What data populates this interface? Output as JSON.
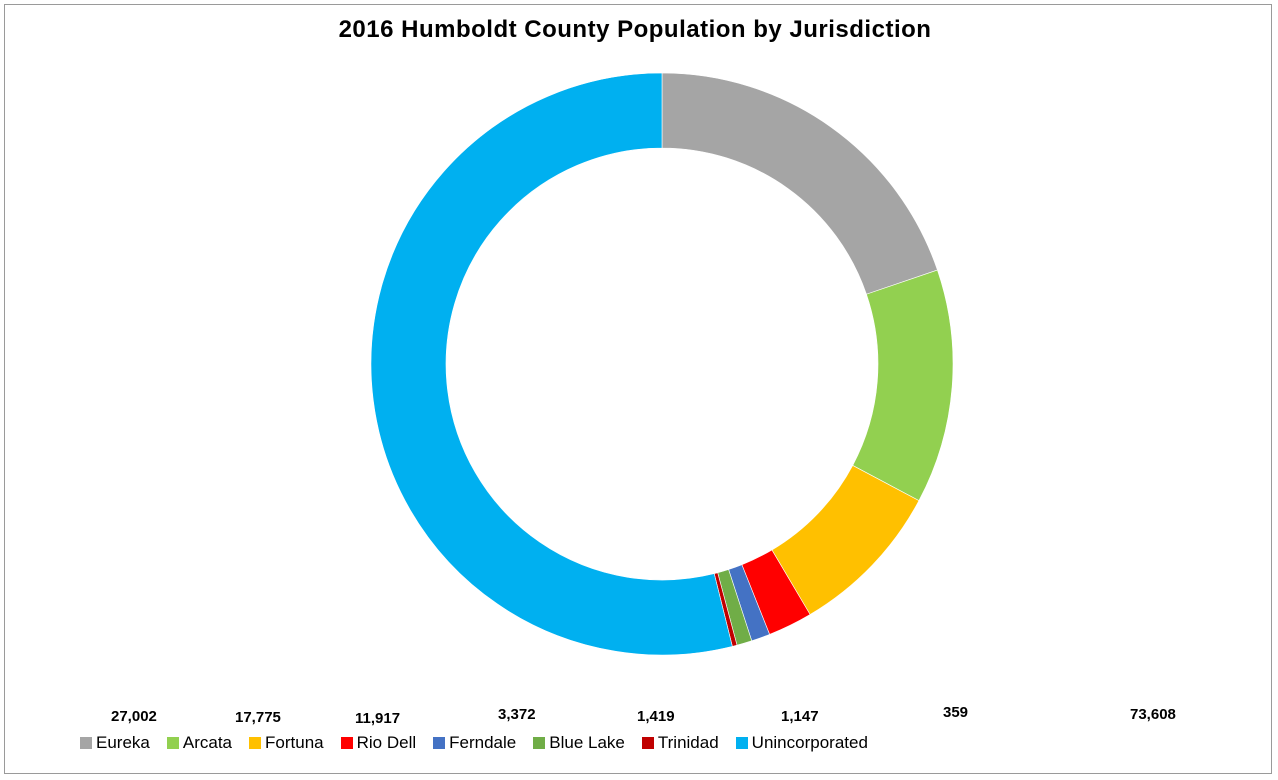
{
  "chart_data": {
    "type": "pie",
    "title": "2016 Humboldt County Population by Jurisdiction",
    "slices": [
      {
        "name": "Eureka",
        "value": 27002,
        "label": "27,002",
        "color": "#a5a5a5"
      },
      {
        "name": "Arcata",
        "value": 17775,
        "label": "17,775",
        "color": "#92d050"
      },
      {
        "name": "Fortuna",
        "value": 11917,
        "label": "11,917",
        "color": "#ffc000"
      },
      {
        "name": "Rio Dell",
        "value": 3372,
        "label": "3,372",
        "color": "#ff0000"
      },
      {
        "name": "Ferndale",
        "value": 1419,
        "label": "1,419",
        "color": "#4472c4"
      },
      {
        "name": "Blue Lake",
        "value": 1147,
        "label": "1,147",
        "color": "#70ad47"
      },
      {
        "name": "Trinidad",
        "value": 359,
        "label": "359",
        "color": "#c00000"
      },
      {
        "name": "Unincorporated",
        "value": 73608,
        "label": "73,608",
        "color": "#00b0f0"
      }
    ],
    "legend_position": "bottom"
  }
}
